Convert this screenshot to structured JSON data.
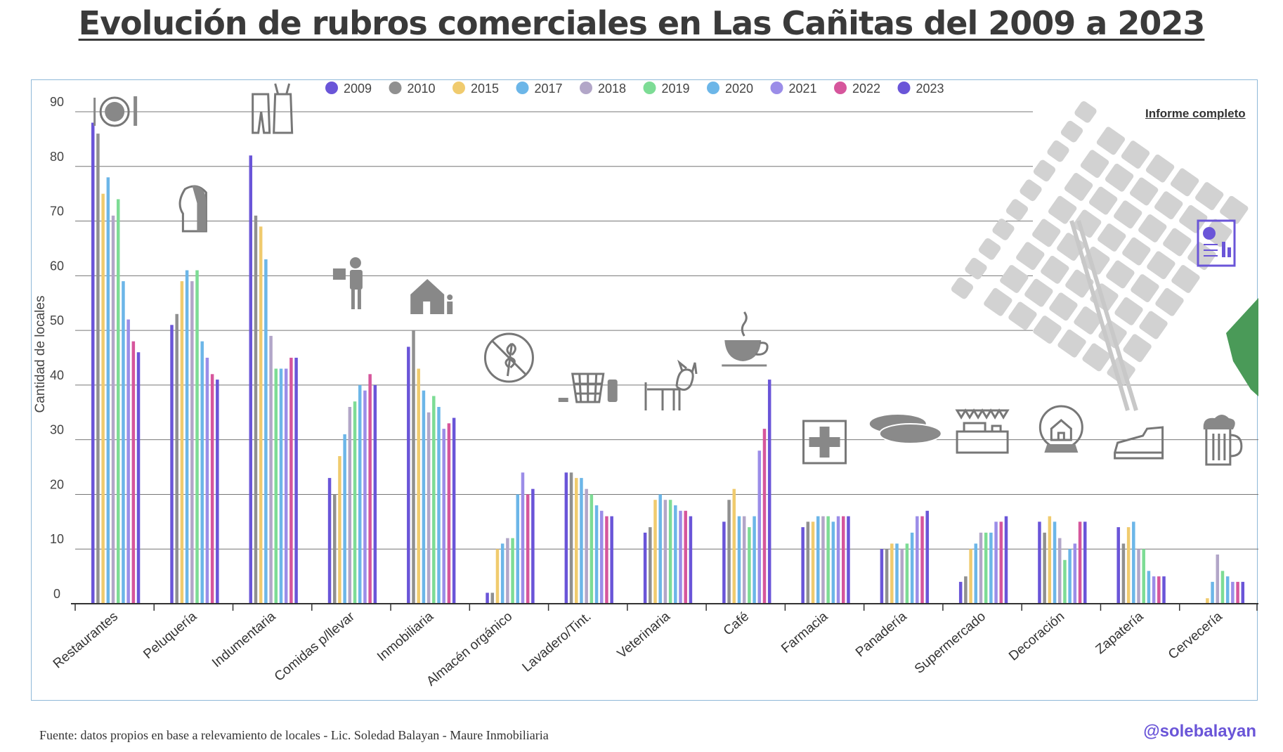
{
  "title": "Evolución de rubros comerciales en Las Cañitas del 2009 a 2023",
  "source": "Fuente: datos propios en base a relevamiento de locales - Lic. Soledad Balayan - Maure Inmobiliaria",
  "handle": "@solebalayan",
  "report_link": "Informe completo",
  "chart_data": {
    "type": "bar",
    "title": "Evolución de rubros comerciales en Las Cañitas del 2009 a 2023",
    "xlabel": "",
    "ylabel": "Cantidad de locales",
    "ylim": [
      0,
      90
    ],
    "yticks": [
      0,
      10,
      20,
      30,
      40,
      50,
      60,
      70,
      80,
      90
    ],
    "grid": true,
    "legend_position": "top",
    "categories": [
      "Restaurantes",
      "Peluquería",
      "Indumentaria",
      "Comidas p/llevar",
      "Inmobiliaria",
      "Almacén orgánico",
      "Lavadero/Tint.",
      "Veterinaria",
      "Café",
      "Farmacia",
      "Panadería",
      "Supermercado",
      "Decoración",
      "Zapatería",
      "Cervecería"
    ],
    "series": [
      {
        "name": "2009",
        "color": "#6a55d8",
        "values": [
          88,
          51,
          82,
          23,
          47,
          2,
          24,
          13,
          15,
          14,
          10,
          4,
          15,
          14,
          0
        ]
      },
      {
        "name": "2010",
        "color": "#909090",
        "values": [
          86,
          53,
          71,
          20,
          50,
          2,
          24,
          14,
          19,
          15,
          10,
          5,
          13,
          11,
          0
        ]
      },
      {
        "name": "2015",
        "color": "#f0cb6e",
        "values": [
          75,
          59,
          69,
          27,
          43,
          10,
          23,
          19,
          21,
          15,
          11,
          10,
          16,
          14,
          1
        ]
      },
      {
        "name": "2017",
        "color": "#6cb6e8",
        "values": [
          78,
          61,
          63,
          31,
          39,
          11,
          23,
          20,
          16,
          16,
          11,
          11,
          15,
          15,
          4
        ]
      },
      {
        "name": "2018",
        "color": "#b2a6c8",
        "values": [
          71,
          59,
          49,
          36,
          35,
          12,
          21,
          19,
          16,
          16,
          10,
          13,
          12,
          10,
          9
        ]
      },
      {
        "name": "2019",
        "color": "#7ddc95",
        "values": [
          74,
          61,
          43,
          37,
          38,
          12,
          20,
          19,
          14,
          16,
          11,
          13,
          8,
          10,
          6
        ]
      },
      {
        "name": "2020",
        "color": "#6cb6e8",
        "values": [
          59,
          48,
          43,
          40,
          36,
          20,
          18,
          18,
          16,
          15,
          13,
          13,
          10,
          6,
          5
        ]
      },
      {
        "name": "2021",
        "color": "#9b8de8",
        "values": [
          52,
          45,
          43,
          39,
          32,
          24,
          17,
          17,
          28,
          16,
          16,
          15,
          11,
          5,
          4
        ]
      },
      {
        "name": "2022",
        "color": "#d6569c",
        "values": [
          48,
          42,
          45,
          42,
          33,
          20,
          16,
          17,
          32,
          16,
          16,
          15,
          15,
          5,
          4
        ]
      },
      {
        "name": "2023",
        "color": "#6a55d8",
        "values": [
          46,
          41,
          45,
          40,
          34,
          21,
          16,
          16,
          41,
          16,
          17,
          16,
          15,
          5,
          4
        ]
      }
    ],
    "icons": [
      "plate-cutlery-icon",
      "haircut-head-icon",
      "clothing-icon",
      "delivery-person-icon",
      "house-icon",
      "no-gluten-icon",
      "laundry-basket-icon",
      "dog-icon",
      "coffee-cup-icon",
      "pharmacy-cross-icon",
      "bread-icon",
      "market-stall-icon",
      "snow-globe-icon",
      "shoe-icon",
      "beer-mug-icon"
    ],
    "map_icon": "neighborhood-map-icon",
    "report_icon": "report-document-icon"
  }
}
